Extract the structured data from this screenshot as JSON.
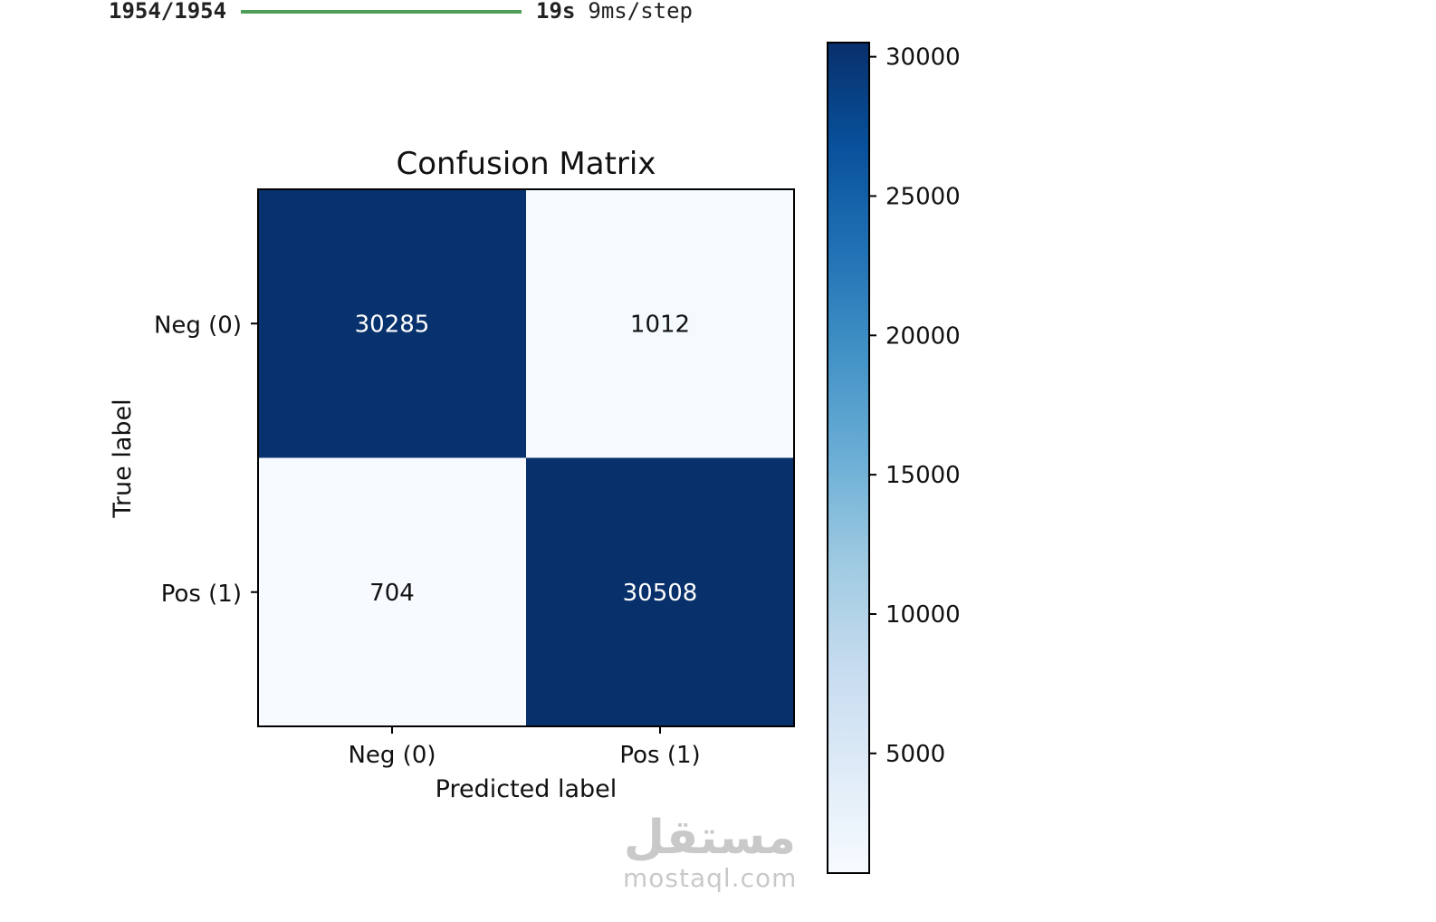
{
  "progress": {
    "steps": "1954/1954",
    "fraction": 1.0,
    "time": "19s",
    "rate": "9ms/step",
    "color": "#4e9d55"
  },
  "chart_data": {
    "type": "heatmap",
    "title": "Confusion Matrix",
    "xlabel": "Predicted label",
    "ylabel": "True label",
    "x_categories": [
      "Neg (0)",
      "Pos (1)"
    ],
    "y_categories": [
      "Neg (0)",
      "Pos (1)"
    ],
    "values": [
      [
        30285,
        1012
      ],
      [
        704,
        30508
      ]
    ],
    "colormap": "Blues",
    "colorbar": {
      "range": [
        704,
        30508
      ],
      "ticks": [
        5000,
        10000,
        15000,
        20000,
        25000,
        30000
      ]
    }
  },
  "watermark": {
    "arabic": "مستقل",
    "latin": "mostaql.com"
  }
}
